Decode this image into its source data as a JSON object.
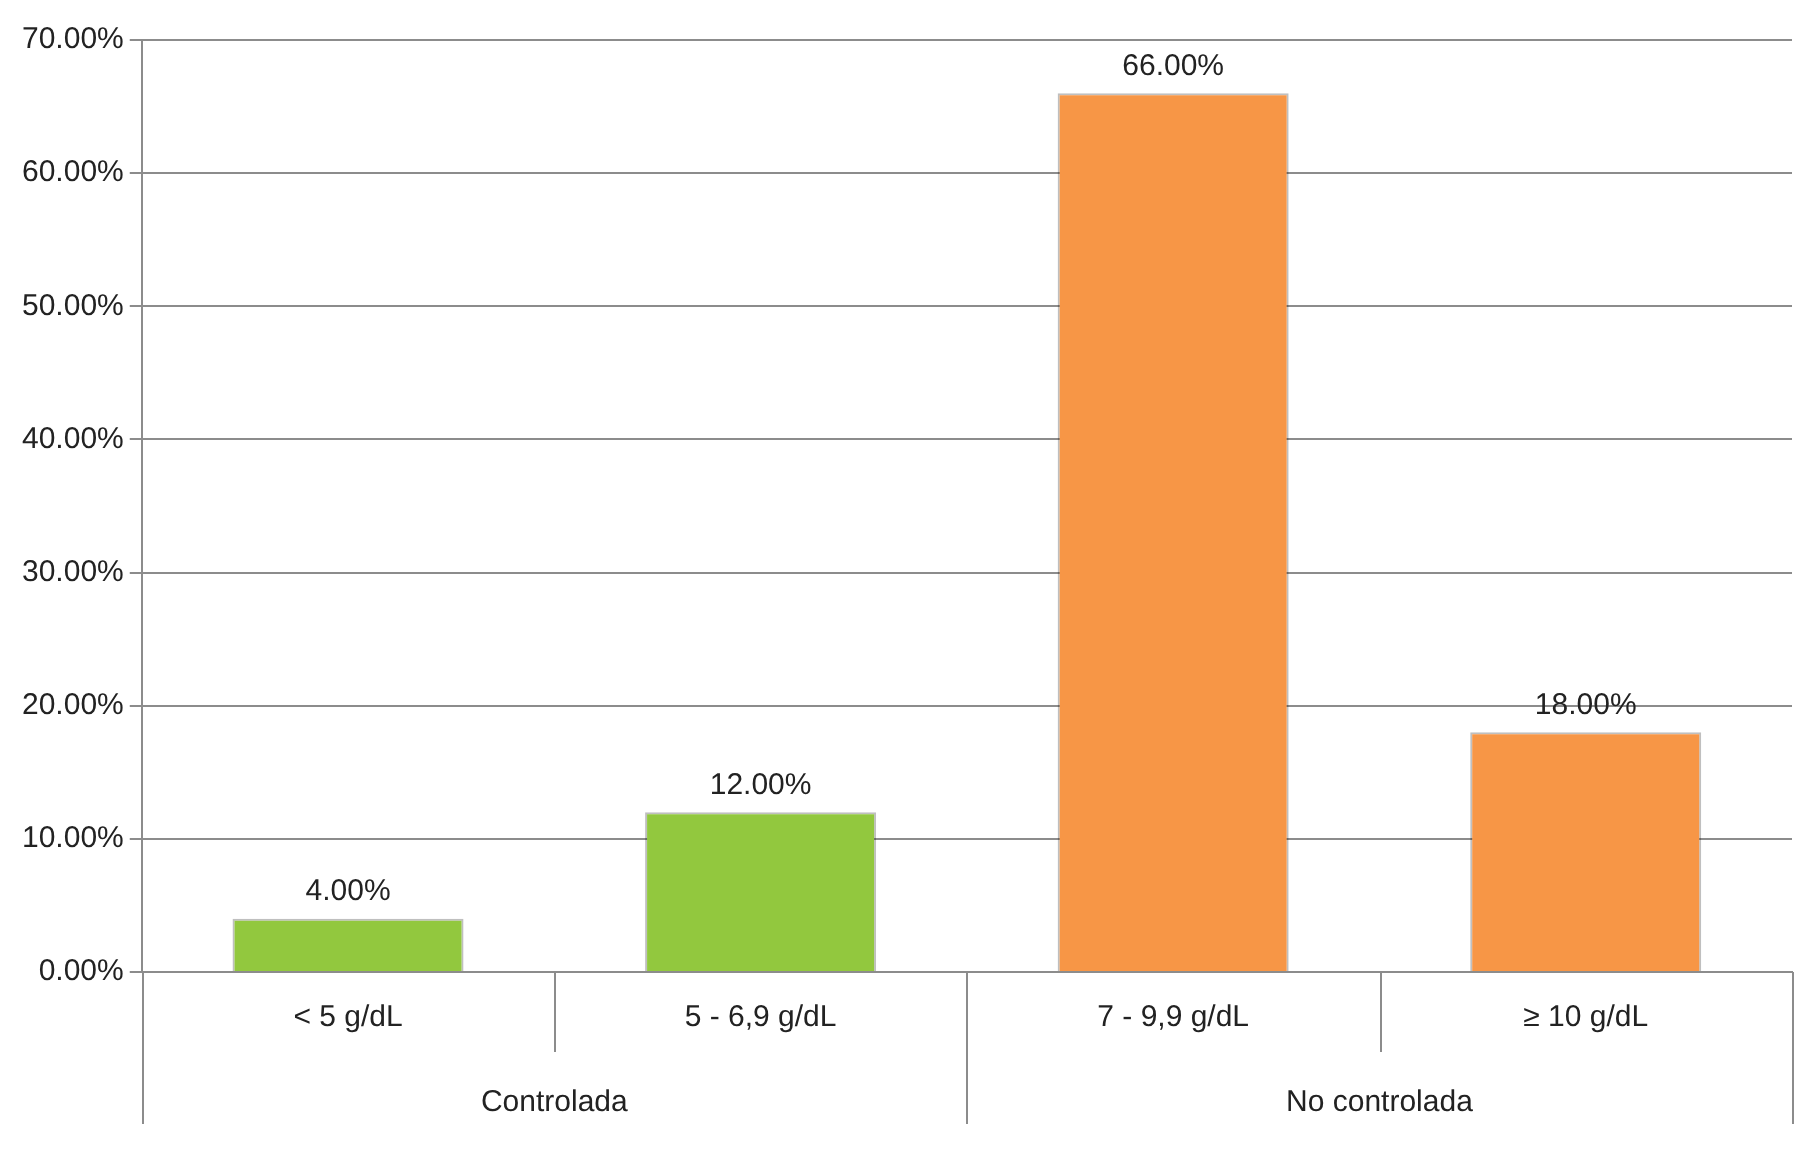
{
  "chart_data": {
    "type": "bar",
    "categories": [
      "< 5 g/dL",
      "5 - 6,9 g/dL",
      "7 - 9,9 g/dL",
      "≥ 10 g/dL"
    ],
    "values": [
      4,
      12,
      66,
      18
    ],
    "colors": [
      "#92c83e",
      "#92c83e",
      "#f79646",
      "#f79646"
    ],
    "value_labels": [
      "4.00%",
      "12.00%",
      "66.00%",
      "18.00%"
    ],
    "annotations": [
      "Controlada",
      "No controlada"
    ],
    "ylim": [
      0,
      70
    ],
    "yticks": [
      {
        "value": 0,
        "label": "0.00%"
      },
      {
        "value": 10,
        "label": "10.00%"
      },
      {
        "value": 20,
        "label": "20.00%"
      },
      {
        "value": 30,
        "label": "30.00%"
      },
      {
        "value": 40,
        "label": "40.00%"
      },
      {
        "value": 50,
        "label": "50.00%"
      },
      {
        "value": 60,
        "label": "60.00%"
      },
      {
        "value": 70,
        "label": "70.00%"
      }
    ],
    "grid": "y",
    "legend": false
  }
}
